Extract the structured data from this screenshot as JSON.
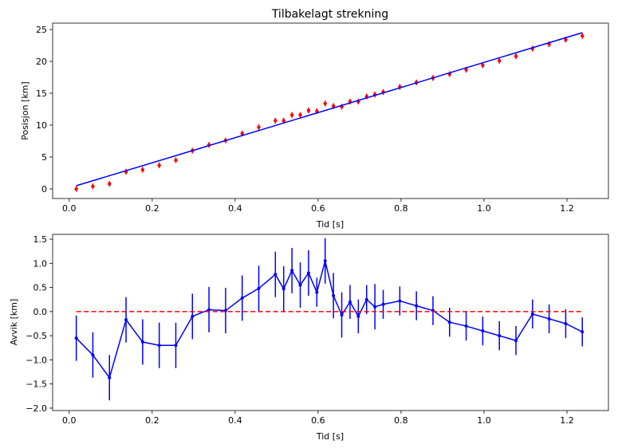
{
  "chart_data": [
    {
      "type": "scatter",
      "title": "Tilbakelagt strekning",
      "xlabel": "Tid [s]",
      "ylabel": "Posisjon [km]",
      "xlim": [
        -0.04,
        1.3
      ],
      "ylim": [
        -1.5,
        26
      ],
      "xticks": [
        0.0,
        0.2,
        0.4,
        0.6,
        0.8,
        1.0,
        1.2
      ],
      "xtick_labels": [
        "0.0",
        "0.2",
        "0.4",
        "0.6",
        "0.8",
        "1.0",
        "1.2"
      ],
      "yticks": [
        0,
        5,
        10,
        15,
        20,
        25
      ],
      "ytick_labels": [
        "0",
        "5",
        "10",
        "15",
        "20",
        "25"
      ],
      "grid": false,
      "colors": {
        "points": "#ff0000",
        "fit": "#0000ff"
      },
      "series": [
        {
          "kind": "points_with_error",
          "x": [
            0.017,
            0.057,
            0.097,
            0.137,
            0.177,
            0.217,
            0.257,
            0.297,
            0.337,
            0.377,
            0.417,
            0.457,
            0.497,
            0.517,
            0.537,
            0.557,
            0.577,
            0.597,
            0.617,
            0.637,
            0.657,
            0.677,
            0.697,
            0.717,
            0.737,
            0.757,
            0.797,
            0.837,
            0.877,
            0.917,
            0.957,
            0.997,
            1.037,
            1.077,
            1.117,
            1.157,
            1.197,
            1.237
          ],
          "y": [
            0.0,
            0.4,
            0.8,
            2.7,
            3.0,
            3.7,
            4.5,
            6.0,
            6.9,
            7.6,
            8.7,
            9.7,
            10.7,
            10.7,
            11.6,
            11.6,
            12.3,
            12.2,
            13.4,
            13.0,
            12.9,
            13.7,
            13.7,
            14.5,
            14.8,
            15.2,
            16.0,
            16.7,
            17.4,
            18.0,
            18.7,
            19.4,
            20.1,
            20.8,
            22.0,
            22.7,
            23.4,
            24.0
          ],
          "err": 0.45
        },
        {
          "kind": "fit_line",
          "x": [
            0.017,
            1.237
          ],
          "y": [
            0.5,
            24.5
          ]
        }
      ]
    },
    {
      "type": "line",
      "title": "",
      "xlabel": "Tid [s]",
      "ylabel": "Avvik [km]",
      "xlim": [
        -0.04,
        1.3
      ],
      "ylim": [
        -2.05,
        1.6
      ],
      "xticks": [
        0.0,
        0.2,
        0.4,
        0.6,
        0.8,
        1.0,
        1.2
      ],
      "xtick_labels": [
        "0.0",
        "0.2",
        "0.4",
        "0.6",
        "0.8",
        "1.0",
        "1.2"
      ],
      "yticks": [
        1.5,
        1.0,
        0.5,
        0.0,
        -0.5,
        -1.0,
        -1.5,
        -2.0
      ],
      "ytick_labels": [
        "1.5",
        "1.0",
        "0.5",
        "0.0",
        "−0.5",
        "−1.0",
        "−1.5",
        "−2.0"
      ],
      "grid": false,
      "colors": {
        "deviation": "#0000ff",
        "zero": "#ff0000"
      },
      "series": [
        {
          "kind": "line_with_error",
          "x": [
            0.017,
            0.057,
            0.097,
            0.137,
            0.177,
            0.217,
            0.257,
            0.297,
            0.337,
            0.377,
            0.417,
            0.457,
            0.497,
            0.517,
            0.537,
            0.557,
            0.577,
            0.597,
            0.617,
            0.637,
            0.657,
            0.677,
            0.697,
            0.717,
            0.737,
            0.757,
            0.797,
            0.837,
            0.877,
            0.917,
            0.957,
            0.997,
            1.037,
            1.077,
            1.117,
            1.157,
            1.197,
            1.237
          ],
          "y": [
            -0.55,
            -0.9,
            -1.37,
            -0.17,
            -0.63,
            -0.7,
            -0.7,
            -0.1,
            0.04,
            0.02,
            0.28,
            0.48,
            0.77,
            0.47,
            0.85,
            0.55,
            0.8,
            0.4,
            1.05,
            0.33,
            -0.07,
            0.2,
            -0.1,
            0.25,
            0.1,
            0.15,
            0.22,
            0.12,
            0.02,
            -0.22,
            -0.3,
            -0.4,
            -0.5,
            -0.6,
            -0.05,
            -0.15,
            -0.25,
            -0.42
          ],
          "err": [
            0.47,
            0.47,
            0.47,
            0.47,
            0.47,
            0.47,
            0.47,
            0.47,
            0.47,
            0.47,
            0.47,
            0.47,
            0.47,
            0.47,
            0.47,
            0.47,
            0.47,
            0.3,
            0.47,
            0.47,
            0.47,
            0.35,
            0.35,
            0.3,
            0.47,
            0.3,
            0.3,
            0.3,
            0.3,
            0.3,
            0.3,
            0.3,
            0.3,
            0.3,
            0.3,
            0.3,
            0.3,
            0.3
          ]
        },
        {
          "kind": "zero_line",
          "x": [
            0.017,
            1.237
          ],
          "y": [
            0.0,
            0.0
          ]
        }
      ]
    }
  ]
}
